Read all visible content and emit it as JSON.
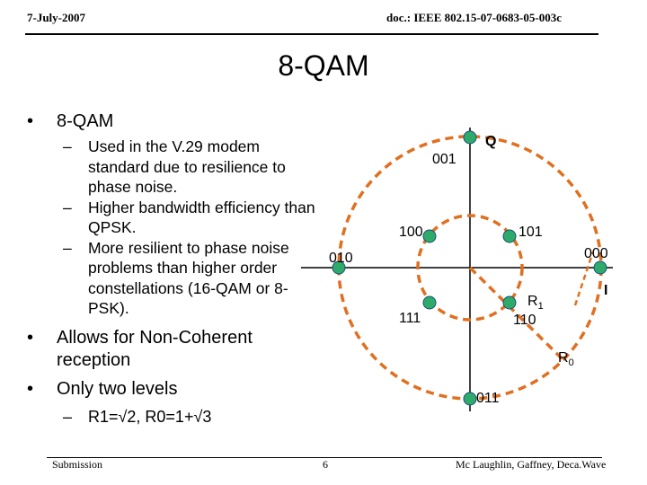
{
  "header": {
    "date": "7-July-2007",
    "doc_id": "doc.: IEEE 802.15-07-0683-05-003c"
  },
  "slide": {
    "title": "8-QAM",
    "bullet1": "8-QAM",
    "sub_bullets": [
      "Used in the V.29 modem standard due to resilience to phase noise.",
      "Higher bandwidth efficiency than QPSK.",
      "More resilient to phase noise problems than higher order constellations (16-QAM or 8-PSK)."
    ],
    "bullet2": "Allows for Non-Coherent reception",
    "bullet3": "Only two levels",
    "sub_bullet3": "R1=√2, R0=1+√3"
  },
  "diagram": {
    "axis_q": "Q",
    "axis_i": "I",
    "radius_outer": "R",
    "radius_outer_sub": "0",
    "radius_inner": "R",
    "radius_inner_sub": "1",
    "points": {
      "p001": "001",
      "p100": "100",
      "p101": "101",
      "p000": "000",
      "p010": "010",
      "p111": "111",
      "p110": "110",
      "p011": "011"
    },
    "circle_color": "#E07020",
    "point_color": "#2EAB6A",
    "line_color": "#000000"
  },
  "footer": {
    "left": "Submission",
    "page": "6",
    "right": "Mc Laughlin, Gaffney, Deca.Wave"
  }
}
